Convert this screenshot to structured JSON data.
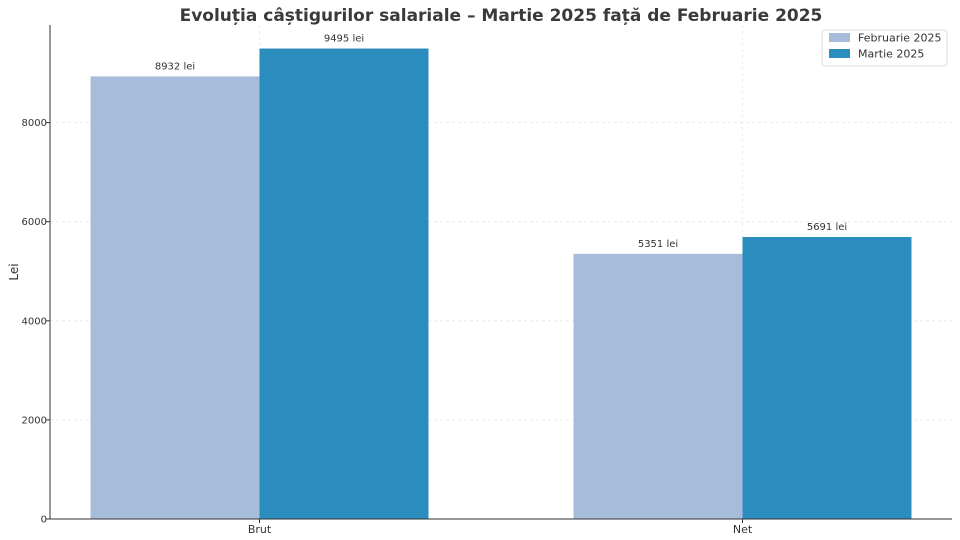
{
  "chart_data": {
    "type": "bar",
    "title": "Evoluția câștigurilor salariale – Martie 2025 față de Februarie 2025",
    "xlabel": "",
    "ylabel": "Lei",
    "categories": [
      "Brut",
      "Net"
    ],
    "series": [
      {
        "name": "Februarie 2025",
        "values": [
          8932,
          5351
        ],
        "labels": [
          "8932 lei",
          "5351 lei"
        ],
        "color": "#a7bcda"
      },
      {
        "name": "Martie 2025",
        "values": [
          9495,
          5691
        ],
        "labels": [
          "9495 lei",
          "5691 lei"
        ],
        "color": "#2b8cbe"
      }
    ],
    "ylim": [
      0,
      9970
    ],
    "yticks": [
      0,
      2000,
      4000,
      6000,
      8000
    ],
    "grid": true,
    "legend_position": "top-right"
  }
}
